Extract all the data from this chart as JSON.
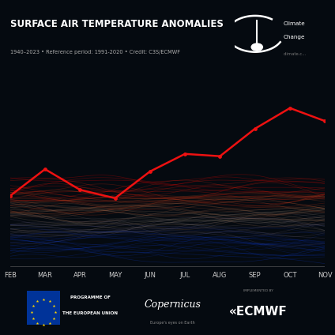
{
  "title": "SURFACE AIR TEMPERATURE ANOMALIES",
  "subtitle": "1940–2023 • Reference period: 1991-2020 • Credit: C3S/ECMWF",
  "x_labels": [
    "FEB",
    "MAR",
    "APR",
    "MAY",
    "JUN",
    "JUL",
    "AUG",
    "SEP",
    "OCT",
    "NOV"
  ],
  "bg_color": "#050a10",
  "red_line_color": "#ee1111",
  "n_months": 10,
  "red_line_values": [
    0.4,
    0.75,
    0.48,
    0.37,
    0.72,
    0.95,
    0.92,
    1.28,
    1.55,
    1.38
  ],
  "y_min": -0.5,
  "y_max": 2.0
}
